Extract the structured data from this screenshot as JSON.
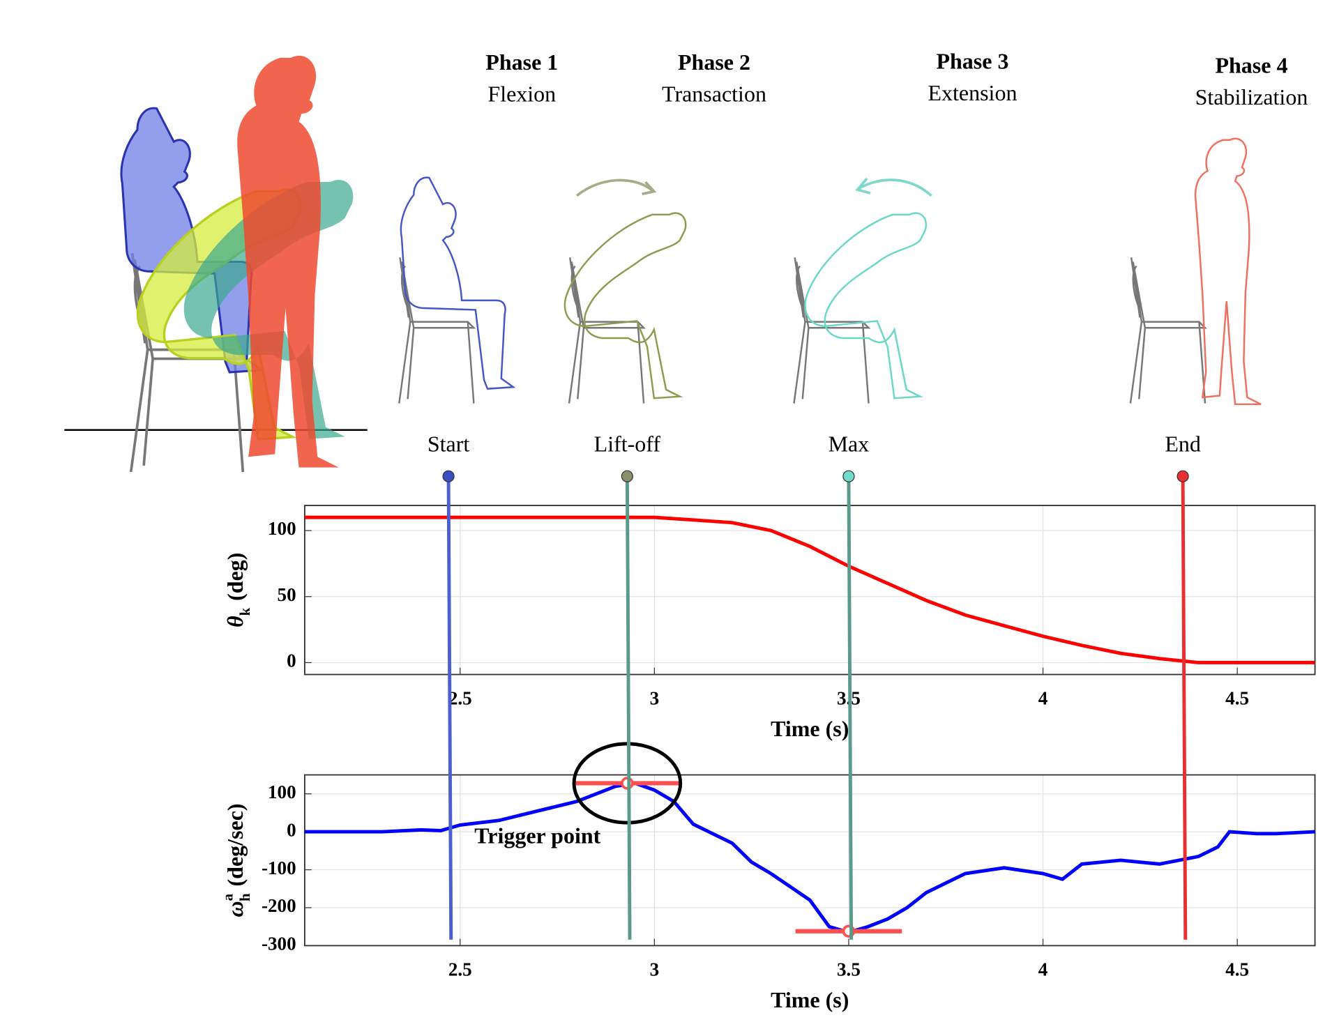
{
  "phases": [
    {
      "title": "Phase 1",
      "name": "Flexion"
    },
    {
      "title": "Phase 2",
      "name": "Transaction"
    },
    {
      "title": "Phase 3",
      "name": "Extension"
    },
    {
      "title": "Phase 4",
      "name": "Stabilization"
    }
  ],
  "events": [
    {
      "label": "Start",
      "x": 2.47,
      "color": "#4a5fd0",
      "dot_color": "#3a4fc0"
    },
    {
      "label": "Lift-off",
      "x": 2.93,
      "color": "#5a9a8a",
      "dot_color": "#8a8f6a"
    },
    {
      "label": "Max",
      "x": 3.5,
      "color": "#5a9a8a",
      "dot_color": "#6fdccc"
    },
    {
      "label": "End",
      "x": 4.36,
      "color": "#e83030",
      "dot_color": "#e83030"
    }
  ],
  "chart_data": [
    {
      "type": "line",
      "y_label": {
        "symbol": "θ",
        "subscript": "k",
        "unit": "(deg)"
      },
      "x_label": "Time (s)",
      "x": [
        2.1,
        2.5,
        2.9,
        3.0,
        3.1,
        3.2,
        3.3,
        3.4,
        3.5,
        3.6,
        3.7,
        3.8,
        3.9,
        4.0,
        4.1,
        4.2,
        4.3,
        4.4,
        4.5,
        4.7
      ],
      "values": [
        110,
        110,
        110,
        110,
        108,
        106,
        100,
        88,
        73,
        60,
        47,
        36,
        28,
        20,
        13,
        7,
        3,
        0,
        0,
        0
      ],
      "color": "#ff0000",
      "xlim": [
        2.1,
        4.7
      ],
      "ylim": [
        -9,
        119
      ],
      "xticks": [
        2.5,
        3,
        3.5,
        4,
        4.5
      ],
      "yticks": [
        0,
        50,
        100
      ],
      "grid": true
    },
    {
      "type": "line",
      "y_label": {
        "symbol": "ω",
        "subscript": "h",
        "superscript": "a",
        "unit": "(deg/sec)"
      },
      "x_label": "Time (s)",
      "x": [
        2.1,
        2.2,
        2.3,
        2.4,
        2.45,
        2.5,
        2.6,
        2.7,
        2.8,
        2.9,
        2.95,
        3.0,
        3.05,
        3.1,
        3.15,
        3.2,
        3.25,
        3.3,
        3.4,
        3.45,
        3.5,
        3.55,
        3.6,
        3.65,
        3.7,
        3.8,
        3.9,
        4.0,
        4.05,
        4.1,
        4.2,
        4.3,
        4.4,
        4.45,
        4.48,
        4.55,
        4.6,
        4.7
      ],
      "values": [
        0,
        0,
        0,
        5,
        3,
        18,
        30,
        55,
        80,
        120,
        128,
        110,
        80,
        20,
        -5,
        -30,
        -80,
        -110,
        -180,
        -250,
        -265,
        -250,
        -230,
        -200,
        -160,
        -110,
        -95,
        -110,
        -125,
        -85,
        -75,
        -85,
        -65,
        -40,
        0,
        -5,
        -5,
        0
      ],
      "color": "#0000ff",
      "xlim": [
        2.1,
        4.7
      ],
      "ylim": [
        -300,
        150
      ],
      "xticks": [
        2.5,
        3,
        3.5,
        4,
        4.5
      ],
      "yticks": [
        -300,
        -200,
        -100,
        0,
        100
      ],
      "grid": true,
      "annotation": {
        "text": "Trigger point",
        "x": 2.93,
        "y": 128
      },
      "peaks": [
        {
          "x": 2.93,
          "y": 128,
          "color": "#ff5050"
        },
        {
          "x": 3.5,
          "y": -262,
          "color": "#ff5050"
        }
      ]
    }
  ]
}
